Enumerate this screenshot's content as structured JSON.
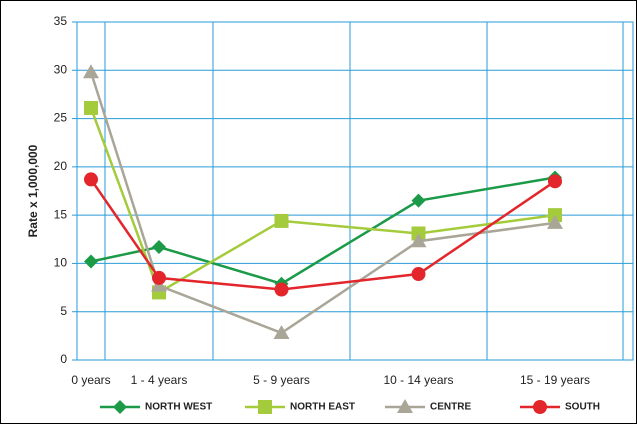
{
  "chart_data": {
    "type": "line",
    "y_label": "Rate x 1,000,000",
    "categories": [
      "0 years",
      "1 - 4 years",
      "5 - 9 years",
      "10 - 14 years",
      "15 - 19 years"
    ],
    "series": [
      {
        "name": "NORTH WEST",
        "color": "#1b9a48",
        "marker": "diamond",
        "values": [
          10.2,
          11.7,
          7.9,
          16.5,
          18.9
        ]
      },
      {
        "name": "NORTH EAST",
        "color": "#a3cb3b",
        "marker": "square",
        "values": [
          26.1,
          7.0,
          14.4,
          13.1,
          15.0
        ]
      },
      {
        "name": "CENTRE",
        "color": "#a9a698",
        "marker": "triangle",
        "values": [
          29.8,
          7.7,
          2.8,
          12.3,
          14.2
        ]
      },
      {
        "name": "SOUTH",
        "color": "#e2262b",
        "marker": "circle",
        "values": [
          18.7,
          8.5,
          7.3,
          8.9,
          18.5
        ]
      }
    ],
    "ylim": [
      0,
      35
    ],
    "yticks": [
      0,
      5,
      10,
      15,
      20,
      25,
      30,
      35
    ],
    "grid": true,
    "legend": "bottom"
  }
}
